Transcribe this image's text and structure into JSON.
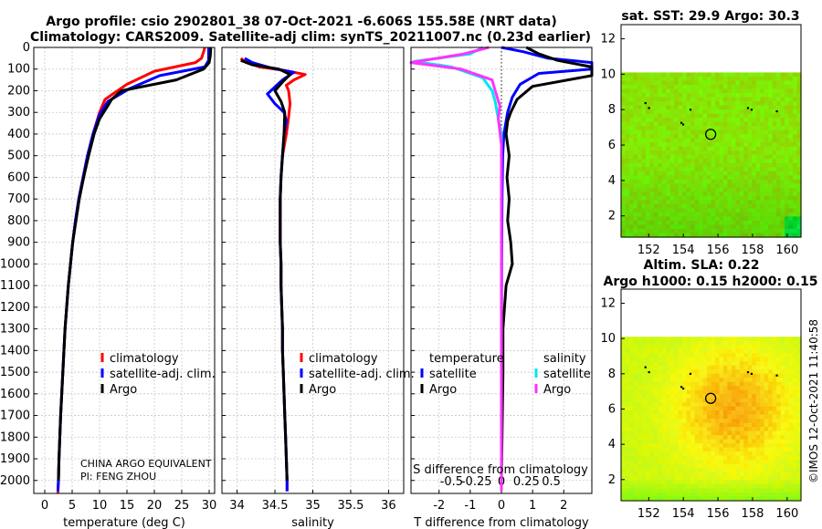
{
  "title": {
    "line1": "Argo profile: csio 2902801_38 07-Oct-2021 -6.606S 155.58E (NRT data)",
    "line2": "Climatology: CARS2009. Satellite-adj clim: synTS_20211007.nc (0.23d earlier)"
  },
  "colors": {
    "climatology": "#ff0000",
    "satellite_adj": "#0000ff",
    "argo": "#000000",
    "sat_temp": "#00e5ee",
    "sat_sal": "#ff33ff"
  },
  "chart_data": [
    {
      "type": "line",
      "id": "temperature",
      "xlabel": "temperature (deg C)",
      "ylabel": "",
      "xlim": [
        -2,
        31
      ],
      "ylim": [
        2060,
        0
      ],
      "xticks": [
        0,
        5,
        10,
        15,
        20,
        25,
        30
      ],
      "yticks": [
        0,
        100,
        200,
        300,
        400,
        500,
        600,
        700,
        800,
        900,
        1000,
        1100,
        1200,
        1300,
        1400,
        1500,
        1600,
        1700,
        1800,
        1900,
        2000
      ],
      "legend": [
        "climatology",
        "satellite-adj. clim.",
        "Argo"
      ],
      "credit_line1": "CHINA ARGO EQUIVALENT",
      "credit_line2": "PI: FENG ZHOU",
      "series": [
        {
          "name": "climatology",
          "color": "#ff0000",
          "points": [
            [
              29.2,
              0
            ],
            [
              29,
              20
            ],
            [
              28.6,
              50
            ],
            [
              27.5,
              70
            ],
            [
              20,
              110
            ],
            [
              15,
              170
            ],
            [
              11,
              240
            ],
            [
              10,
              300
            ],
            [
              8.8,
              400
            ],
            [
              7.8,
              500
            ],
            [
              7,
              600
            ],
            [
              6.2,
              700
            ],
            [
              5.6,
              800
            ],
            [
              5.1,
              900
            ],
            [
              4.7,
              1000
            ],
            [
              4.3,
              1100
            ],
            [
              4,
              1200
            ],
            [
              3.7,
              1300
            ],
            [
              3.5,
              1400
            ],
            [
              3.3,
              1500
            ],
            [
              3.1,
              1600
            ],
            [
              2.9,
              1700
            ],
            [
              2.75,
              1800
            ],
            [
              2.6,
              1900
            ],
            [
              2.5,
              2000
            ],
            [
              2.4,
              2060
            ]
          ]
        },
        {
          "name": "satellite-adj. clim.",
          "color": "#0000ff",
          "points": [
            [
              29.9,
              0
            ],
            [
              29.9,
              30
            ],
            [
              29.9,
              60
            ],
            [
              29.2,
              90
            ],
            [
              21,
              130
            ],
            [
              15.5,
              190
            ],
            [
              11.5,
              250
            ],
            [
              10,
              310
            ],
            [
              8.8,
              400
            ],
            [
              7.8,
              500
            ],
            [
              7,
              600
            ],
            [
              6.2,
              700
            ],
            [
              5.6,
              800
            ],
            [
              5.1,
              900
            ],
            [
              4.7,
              1000
            ],
            [
              4.3,
              1100
            ],
            [
              4,
              1200
            ],
            [
              3.7,
              1300
            ],
            [
              3.5,
              1400
            ],
            [
              3.3,
              1500
            ],
            [
              3.1,
              1600
            ],
            [
              2.9,
              1700
            ],
            [
              2.75,
              1800
            ],
            [
              2.6,
              1900
            ],
            [
              2.5,
              2000
            ],
            [
              2.4,
              2050
            ]
          ]
        },
        {
          "name": "Argo",
          "color": "#000000",
          "points": [
            [
              30.3,
              0
            ],
            [
              30.2,
              40
            ],
            [
              30,
              70
            ],
            [
              29,
              100
            ],
            [
              24,
              150
            ],
            [
              14,
              200
            ],
            [
              12.2,
              240
            ],
            [
              11.5,
              270
            ],
            [
              10,
              330
            ],
            [
              9,
              400
            ],
            [
              8,
              500
            ],
            [
              7.1,
              600
            ],
            [
              6.3,
              700
            ],
            [
              5.7,
              800
            ],
            [
              5.1,
              900
            ],
            [
              4.7,
              1000
            ],
            [
              4.3,
              1100
            ],
            [
              4,
              1200
            ],
            [
              3.7,
              1300
            ],
            [
              3.5,
              1400
            ],
            [
              3.3,
              1500
            ],
            [
              3.1,
              1600
            ],
            [
              2.9,
              1700
            ],
            [
              2.75,
              1800
            ],
            [
              2.6,
              1900
            ],
            [
              2.5,
              2000
            ]
          ]
        }
      ]
    },
    {
      "type": "line",
      "id": "salinity",
      "xlabel": "salinity",
      "xlim": [
        33.8,
        36.2
      ],
      "ylim": [
        2060,
        0
      ],
      "xticks": [
        34,
        34.5,
        35,
        35.5,
        36
      ],
      "yticks": [
        0,
        100,
        200,
        300,
        400,
        500,
        600,
        700,
        800,
        900,
        1000,
        1100,
        1200,
        1300,
        1400,
        1500,
        1600,
        1700,
        1800,
        1900,
        2000
      ],
      "legend": [
        "climatology",
        "satellite-adj. clim.",
        "Argo"
      ],
      "series": [
        {
          "name": "climatology",
          "color": "#ff0000",
          "points": [
            [
              34.05,
              50
            ],
            [
              34.12,
              70
            ],
            [
              34.3,
              90
            ],
            [
              34.6,
              105
            ],
            [
              34.9,
              125
            ],
            [
              34.75,
              150
            ],
            [
              34.65,
              175
            ],
            [
              34.68,
              200
            ],
            [
              34.7,
              260
            ],
            [
              34.68,
              320
            ],
            [
              34.65,
              400
            ],
            [
              34.6,
              500
            ],
            [
              34.58,
              600
            ],
            [
              34.57,
              700
            ],
            [
              34.57,
              800
            ],
            [
              34.57,
              900
            ],
            [
              34.58,
              1000
            ],
            [
              34.58,
              1100
            ],
            [
              34.59,
              1200
            ],
            [
              34.6,
              1300
            ],
            [
              34.6,
              1400
            ],
            [
              34.61,
              1500
            ],
            [
              34.62,
              1600
            ],
            [
              34.63,
              1700
            ],
            [
              34.64,
              1800
            ],
            [
              34.65,
              1900
            ],
            [
              34.66,
              2000
            ],
            [
              34.66,
              2050
            ]
          ]
        },
        {
          "name": "satellite-adj. clim.",
          "color": "#0000ff",
          "points": [
            [
              34.1,
              50
            ],
            [
              34.2,
              70
            ],
            [
              34.45,
              95
            ],
            [
              34.75,
              115
            ],
            [
              34.6,
              150
            ],
            [
              34.4,
              215
            ],
            [
              34.5,
              260
            ],
            [
              34.62,
              300
            ],
            [
              34.65,
              340
            ],
            [
              34.62,
              400
            ],
            [
              34.6,
              500
            ],
            [
              34.58,
              600
            ],
            [
              34.57,
              700
            ],
            [
              34.57,
              800
            ],
            [
              34.57,
              900
            ],
            [
              34.58,
              1000
            ],
            [
              34.58,
              1100
            ],
            [
              34.59,
              1200
            ],
            [
              34.6,
              1300
            ],
            [
              34.6,
              1400
            ],
            [
              34.61,
              1500
            ],
            [
              34.62,
              1600
            ],
            [
              34.63,
              1700
            ],
            [
              34.64,
              1800
            ],
            [
              34.65,
              1900
            ],
            [
              34.66,
              2000
            ],
            [
              34.66,
              2050
            ]
          ]
        },
        {
          "name": "Argo",
          "color": "#000000",
          "points": [
            [
              34.05,
              60
            ],
            [
              34.2,
              80
            ],
            [
              34.55,
              100
            ],
            [
              34.7,
              125
            ],
            [
              34.6,
              160
            ],
            [
              34.5,
              200
            ],
            [
              34.58,
              250
            ],
            [
              34.63,
              300
            ],
            [
              34.62,
              400
            ],
            [
              34.6,
              500
            ],
            [
              34.58,
              600
            ],
            [
              34.57,
              700
            ],
            [
              34.57,
              800
            ],
            [
              34.57,
              900
            ],
            [
              34.58,
              1000
            ],
            [
              34.58,
              1100
            ],
            [
              34.59,
              1200
            ],
            [
              34.6,
              1300
            ],
            [
              34.6,
              1400
            ],
            [
              34.61,
              1500
            ],
            [
              34.62,
              1600
            ],
            [
              34.63,
              1700
            ],
            [
              34.64,
              1800
            ],
            [
              34.65,
              1900
            ],
            [
              34.66,
              2000
            ]
          ]
        }
      ]
    },
    {
      "type": "line",
      "id": "difference",
      "xlabel": "T difference from climatology",
      "xlabel_top": "S difference from climatology",
      "xlim": [
        -2.9,
        2.9
      ],
      "ylim": [
        2060,
        0
      ],
      "xticks": [
        -2,
        -1,
        0,
        1,
        2
      ],
      "s_ticklabels": [
        "-0.5",
        "-0.25",
        "0",
        "0.25",
        "0.5"
      ],
      "yticks": [
        0,
        100,
        200,
        300,
        400,
        500,
        600,
        700,
        800,
        900,
        1000,
        1100,
        1200,
        1300,
        1400,
        1500,
        1600,
        1700,
        1800,
        1900,
        2000
      ],
      "legend_headers": [
        "temperature",
        "salinity"
      ],
      "legend": [
        "satellite",
        "Argo",
        "satellite",
        "Argo"
      ],
      "series": [
        {
          "name": "temperature satellite",
          "color": "#0000ff",
          "points": [
            [
              0,
              0
            ],
            [
              0.7,
              20
            ],
            [
              1.5,
              50
            ],
            [
              2.9,
              70
            ],
            [
              2.9,
              100
            ],
            [
              1.2,
              120
            ],
            [
              0.6,
              170
            ],
            [
              0.35,
              230
            ],
            [
              0.2,
              300
            ],
            [
              0.08,
              400
            ],
            [
              0.04,
              500
            ],
            [
              0.02,
              700
            ],
            [
              0.01,
              1000
            ],
            [
              0,
              1500
            ],
            [
              0,
              2000
            ]
          ]
        },
        {
          "name": "temperature Argo",
          "color": "#000000",
          "points": [
            [
              0.8,
              0
            ],
            [
              1.2,
              30
            ],
            [
              1.8,
              60
            ],
            [
              2.9,
              90
            ],
            [
              2.9,
              130
            ],
            [
              1,
              180
            ],
            [
              0.5,
              240
            ],
            [
              0.3,
              300
            ],
            [
              0.2,
              340
            ],
            [
              0.15,
              400
            ],
            [
              0.25,
              500
            ],
            [
              0.18,
              600
            ],
            [
              0.25,
              700
            ],
            [
              0.2,
              800
            ],
            [
              0.3,
              900
            ],
            [
              0.35,
              1000
            ],
            [
              0.15,
              1100
            ],
            [
              0.1,
              1200
            ],
            [
              0.05,
              1300
            ],
            [
              0.05,
              1500
            ],
            [
              0,
              2000
            ]
          ]
        },
        {
          "name": "salinity satellite",
          "color": "#00e5ee",
          "points": [
            [
              -0.6,
              0
            ],
            [
              -1,
              30
            ],
            [
              -2.8,
              65
            ],
            [
              -1.6,
              90
            ],
            [
              -0.6,
              140
            ],
            [
              -0.3,
              200
            ],
            [
              -0.2,
              250
            ],
            [
              -0.1,
              330
            ],
            [
              0,
              400
            ],
            [
              0,
              2050
            ]
          ]
        },
        {
          "name": "salinity Argo",
          "color": "#ff33ff",
          "points": [
            [
              -0.4,
              0
            ],
            [
              -1.2,
              30
            ],
            [
              -2.9,
              70
            ],
            [
              -1.3,
              100
            ],
            [
              -0.3,
              150
            ],
            [
              -0.2,
              200
            ],
            [
              -0.05,
              270
            ],
            [
              -0.1,
              330
            ],
            [
              0,
              450
            ],
            [
              0,
              2050
            ]
          ]
        }
      ]
    }
  ],
  "sst_panel": {
    "title": "sat. SST: 29.9 Argo: 30.3",
    "xticks": [
      152,
      154,
      156,
      158,
      160
    ],
    "yticks": [
      2,
      4,
      6,
      8,
      10,
      12
    ],
    "xlim": [
      150.4,
      160.8
    ],
    "ylim": [
      0.8,
      12.8
    ],
    "data_ymax": 10.1,
    "marker": {
      "lon": 155.58,
      "lat": 6.606
    }
  },
  "sla_panel": {
    "title_line1": "Altim. SLA: 0.22",
    "title_line2": "Argo h1000: 0.15 h2000: 0.15",
    "xticks": [
      152,
      154,
      156,
      158,
      160
    ],
    "yticks": [
      2,
      4,
      6,
      8,
      10,
      12
    ],
    "xlim": [
      150.4,
      160.8
    ],
    "ylim": [
      0.8,
      12.8
    ],
    "data_ymax": 10.1,
    "marker": {
      "lon": 155.58,
      "lat": 6.606
    }
  },
  "watermark": "©IMOS 12-Oct-2021 11:40:58"
}
